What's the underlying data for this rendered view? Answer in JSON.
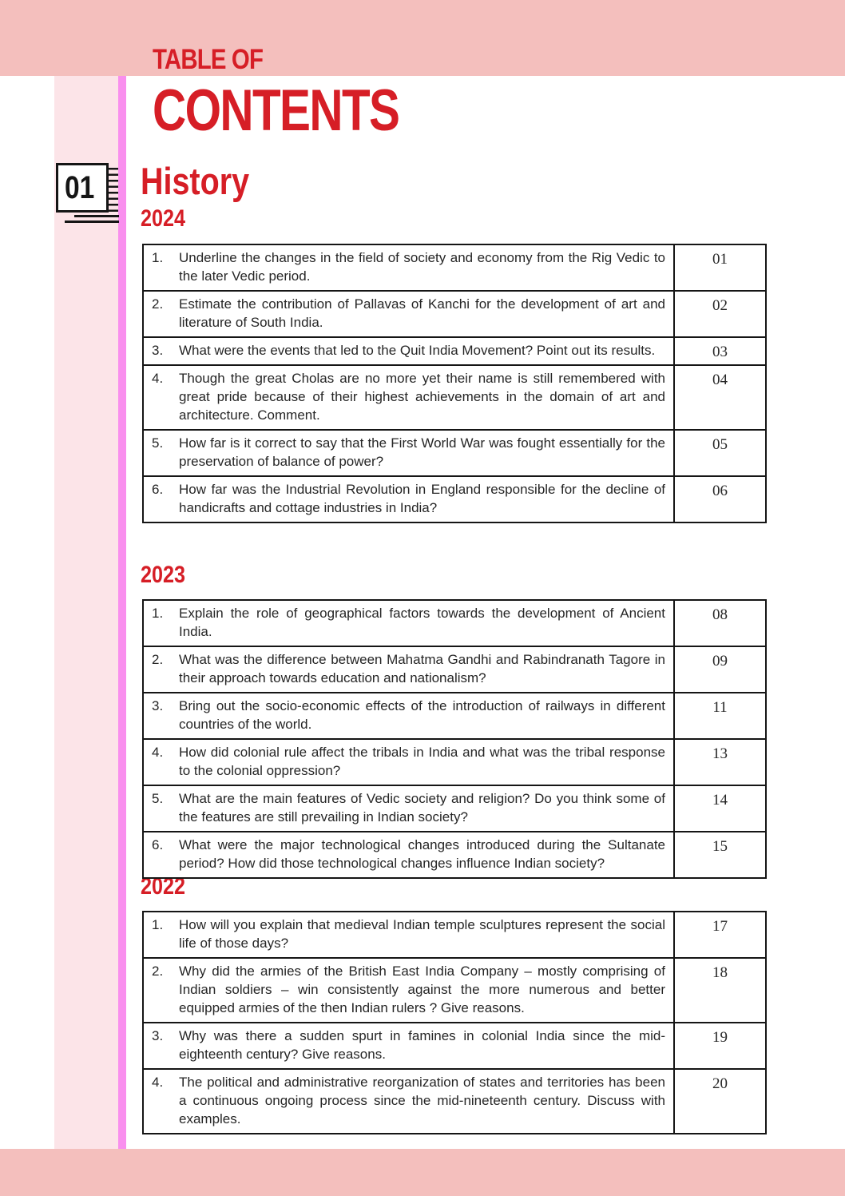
{
  "page": {
    "title_line1": "TABLE OF",
    "title_line2": "CONTENTS",
    "chapter_number": "01",
    "subject": "History"
  },
  "colors": {
    "red": "#d61e26",
    "salmon": "#f4bfbd",
    "pink": "#fce4e8",
    "magenta": "#f98fee",
    "ink": "#151515",
    "text": "#262626"
  },
  "sections": [
    {
      "year": "2024",
      "rows": [
        {
          "num": "1.",
          "question": "Underline the changes in the field of society and economy from the Rig Vedic to the later Vedic period.",
          "page": "01"
        },
        {
          "num": "2.",
          "question": "Estimate the contribution of Pallavas of Kanchi for the development of art and literature of South India.",
          "page": "02"
        },
        {
          "num": "3.",
          "question": "What were the events that led to the Quit India Movement? Point out its results.",
          "page": "03"
        },
        {
          "num": "4.",
          "question": "Though the great Cholas are no more yet their name is still remembered with great pride because of their highest achievements in the domain of art and architecture. Comment.",
          "page": "04"
        },
        {
          "num": "5.",
          "question": "How far is it correct to say that the First World War was fought essentially for the preservation of balance of power?",
          "page": "05"
        },
        {
          "num": "6.",
          "question": "How far was the Industrial Revolution in England responsible for the decline of handicrafts and cottage industries in India?",
          "page": "06"
        }
      ]
    },
    {
      "year": "2023",
      "rows": [
        {
          "num": "1.",
          "question": "Explain the role of geographical factors towards the development of Ancient India.",
          "page": "08"
        },
        {
          "num": "2.",
          "question": "What was the difference between Mahatma Gandhi and Rabindranath Tagore in their approach towards education and nationalism?",
          "page": "09"
        },
        {
          "num": "3.",
          "question": "Bring out the socio-economic effects of the introduction of railways in different countries of the world.",
          "page": "11"
        },
        {
          "num": "4.",
          "question": "How did colonial rule affect the tribals in India and what was the tribal response to the colonial oppression?",
          "page": "13"
        },
        {
          "num": "5.",
          "question": "What are the main features of Vedic society and religion? Do you think some of the features are still prevailing in Indian society?",
          "page": "14"
        },
        {
          "num": "6.",
          "question": "What were the major technological changes introduced during the Sultanate period? How did those technological changes influence Indian society?",
          "page": "15"
        }
      ]
    },
    {
      "year": "2022",
      "rows": [
        {
          "num": "1.",
          "question": "How will you explain that medieval Indian temple sculptures represent the social life of those days?",
          "page": "17"
        },
        {
          "num": "2.",
          "question": "Why did the armies of the British East India Company – mostly comprising of Indian soldiers – win consistently against the more numerous and better equipped armies of the then Indian rulers ? Give reasons.",
          "page": "18"
        },
        {
          "num": "3.",
          "question": "Why was there a sudden spurt in famines in colonial India since the mid-eighteenth century? Give reasons.",
          "page": "19"
        },
        {
          "num": "4.",
          "question": "The political and administrative reorganization of states and territories has been a continuous ongoing process since the mid-nineteenth century. Discuss with examples.",
          "page": "20"
        }
      ]
    }
  ]
}
